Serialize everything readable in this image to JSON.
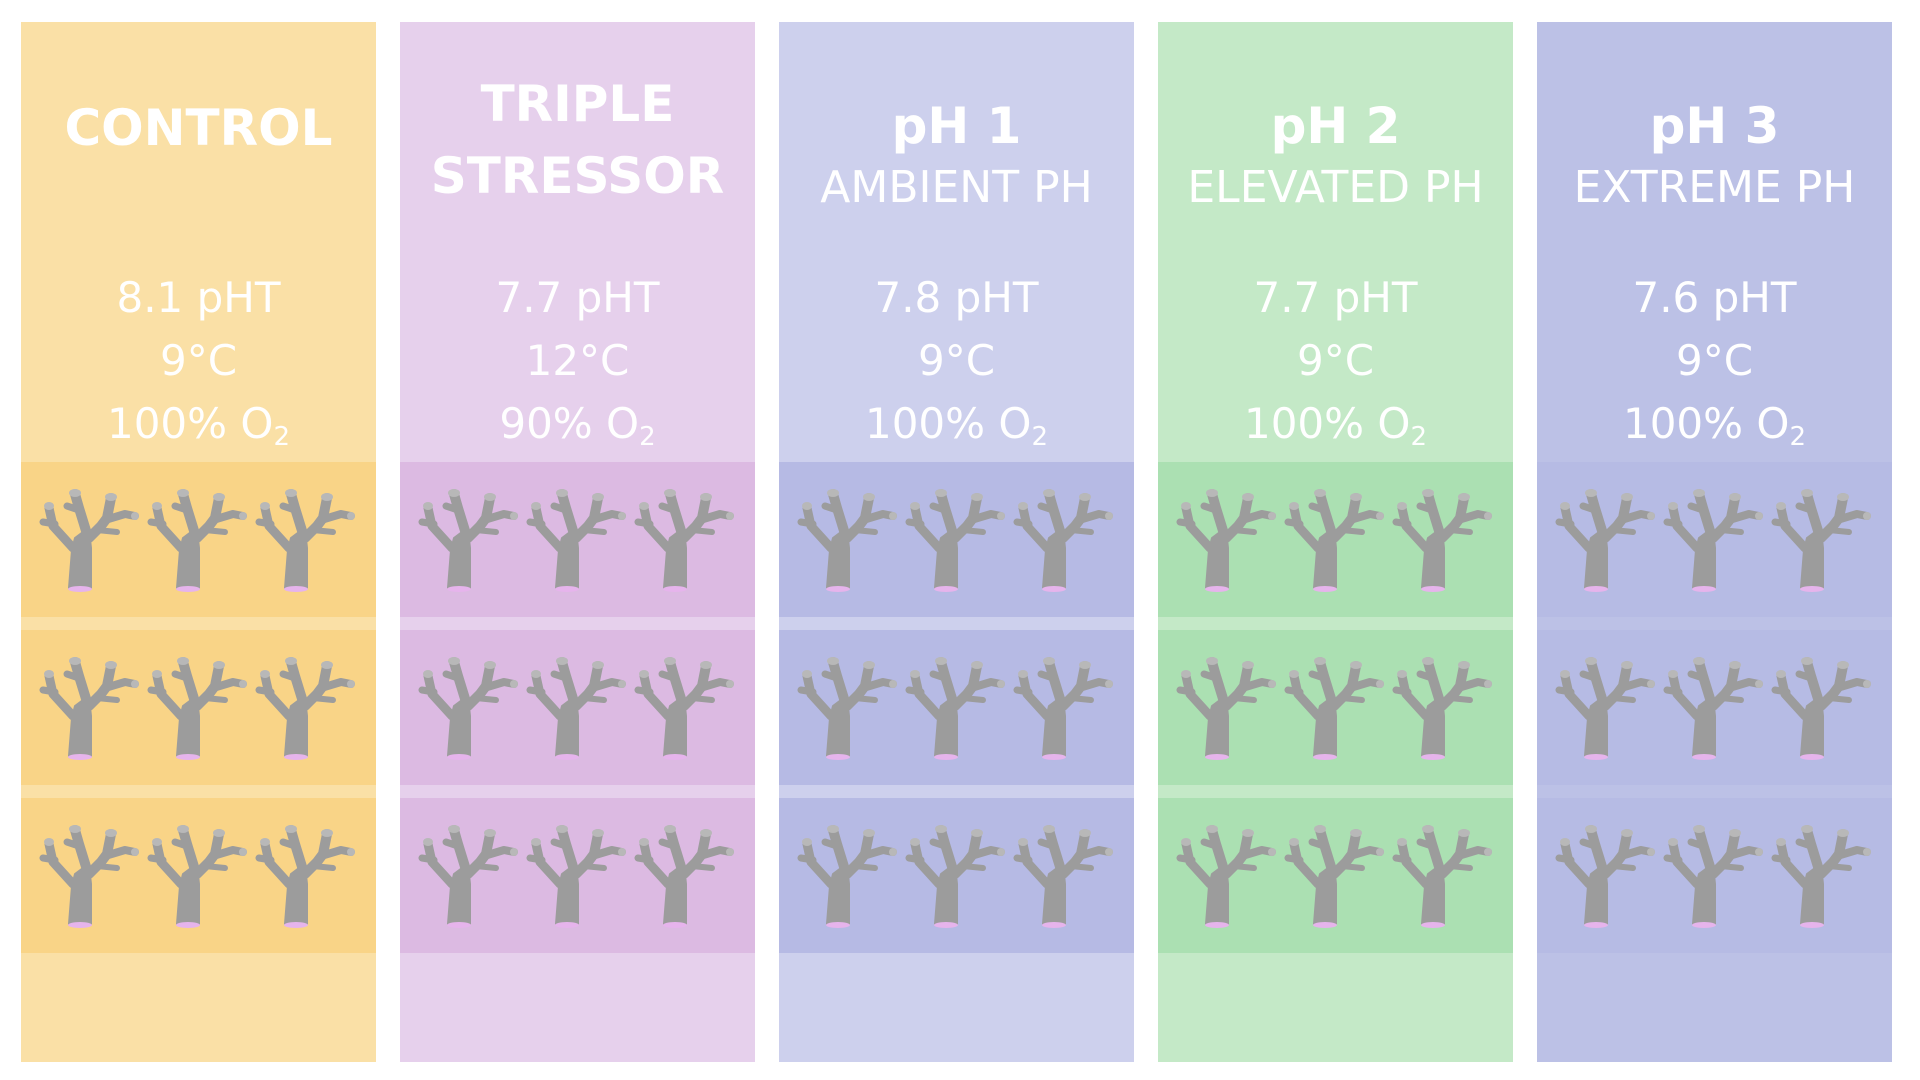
{
  "columns": [
    {
      "title_lines": [
        "CONTROL"
      ],
      "subtitle": "",
      "ph": "8.1 pHT",
      "temp": "9°C",
      "oxygen": "100% O",
      "oxygen_sub": "2",
      "colors": {
        "panel": "#fae0a6",
        "tank": "#f9d487"
      }
    },
    {
      "title_lines": [
        "TRIPLE",
        "STRESSOR"
      ],
      "subtitle": "",
      "ph": "7.7 pHT",
      "temp": "12°C",
      "oxygen": "90% O",
      "oxygen_sub": "2",
      "colors": {
        "panel": "#e6d0ec",
        "tank": "#dcbae2"
      }
    },
    {
      "title_lines": [
        "pH 1"
      ],
      "subtitle": "AMBIENT PH",
      "ph": "7.8 pHT",
      "temp": "9°C",
      "oxygen": "100% O",
      "oxygen_sub": "2",
      "colors": {
        "panel": "#cdd0ed",
        "tank": "#b6bae4"
      }
    },
    {
      "title_lines": [
        "pH 2"
      ],
      "subtitle": "ELEVATED PH",
      "ph": "7.7 pHT",
      "temp": "9°C",
      "oxygen": "100% O",
      "oxygen_sub": "2",
      "colors": {
        "panel": "#c4e9c7",
        "tank": "#abe0b2"
      }
    },
    {
      "title_lines": [
        "pH 3"
      ],
      "subtitle": "EXTREME PH",
      "ph": "7.6 pHT",
      "temp": "9°C",
      "oxygen": "100% O",
      "oxygen_sub": "2",
      "colors": {
        "panel": "#bcc1e6",
        "tank": "#b6bbe4"
      }
    }
  ],
  "tanks_per_column": 3,
  "corals_per_tank": 3,
  "coral_icon": "coral-icon",
  "coral_color": "#9c9c9c",
  "coral_base_color": "#e6b4ec"
}
